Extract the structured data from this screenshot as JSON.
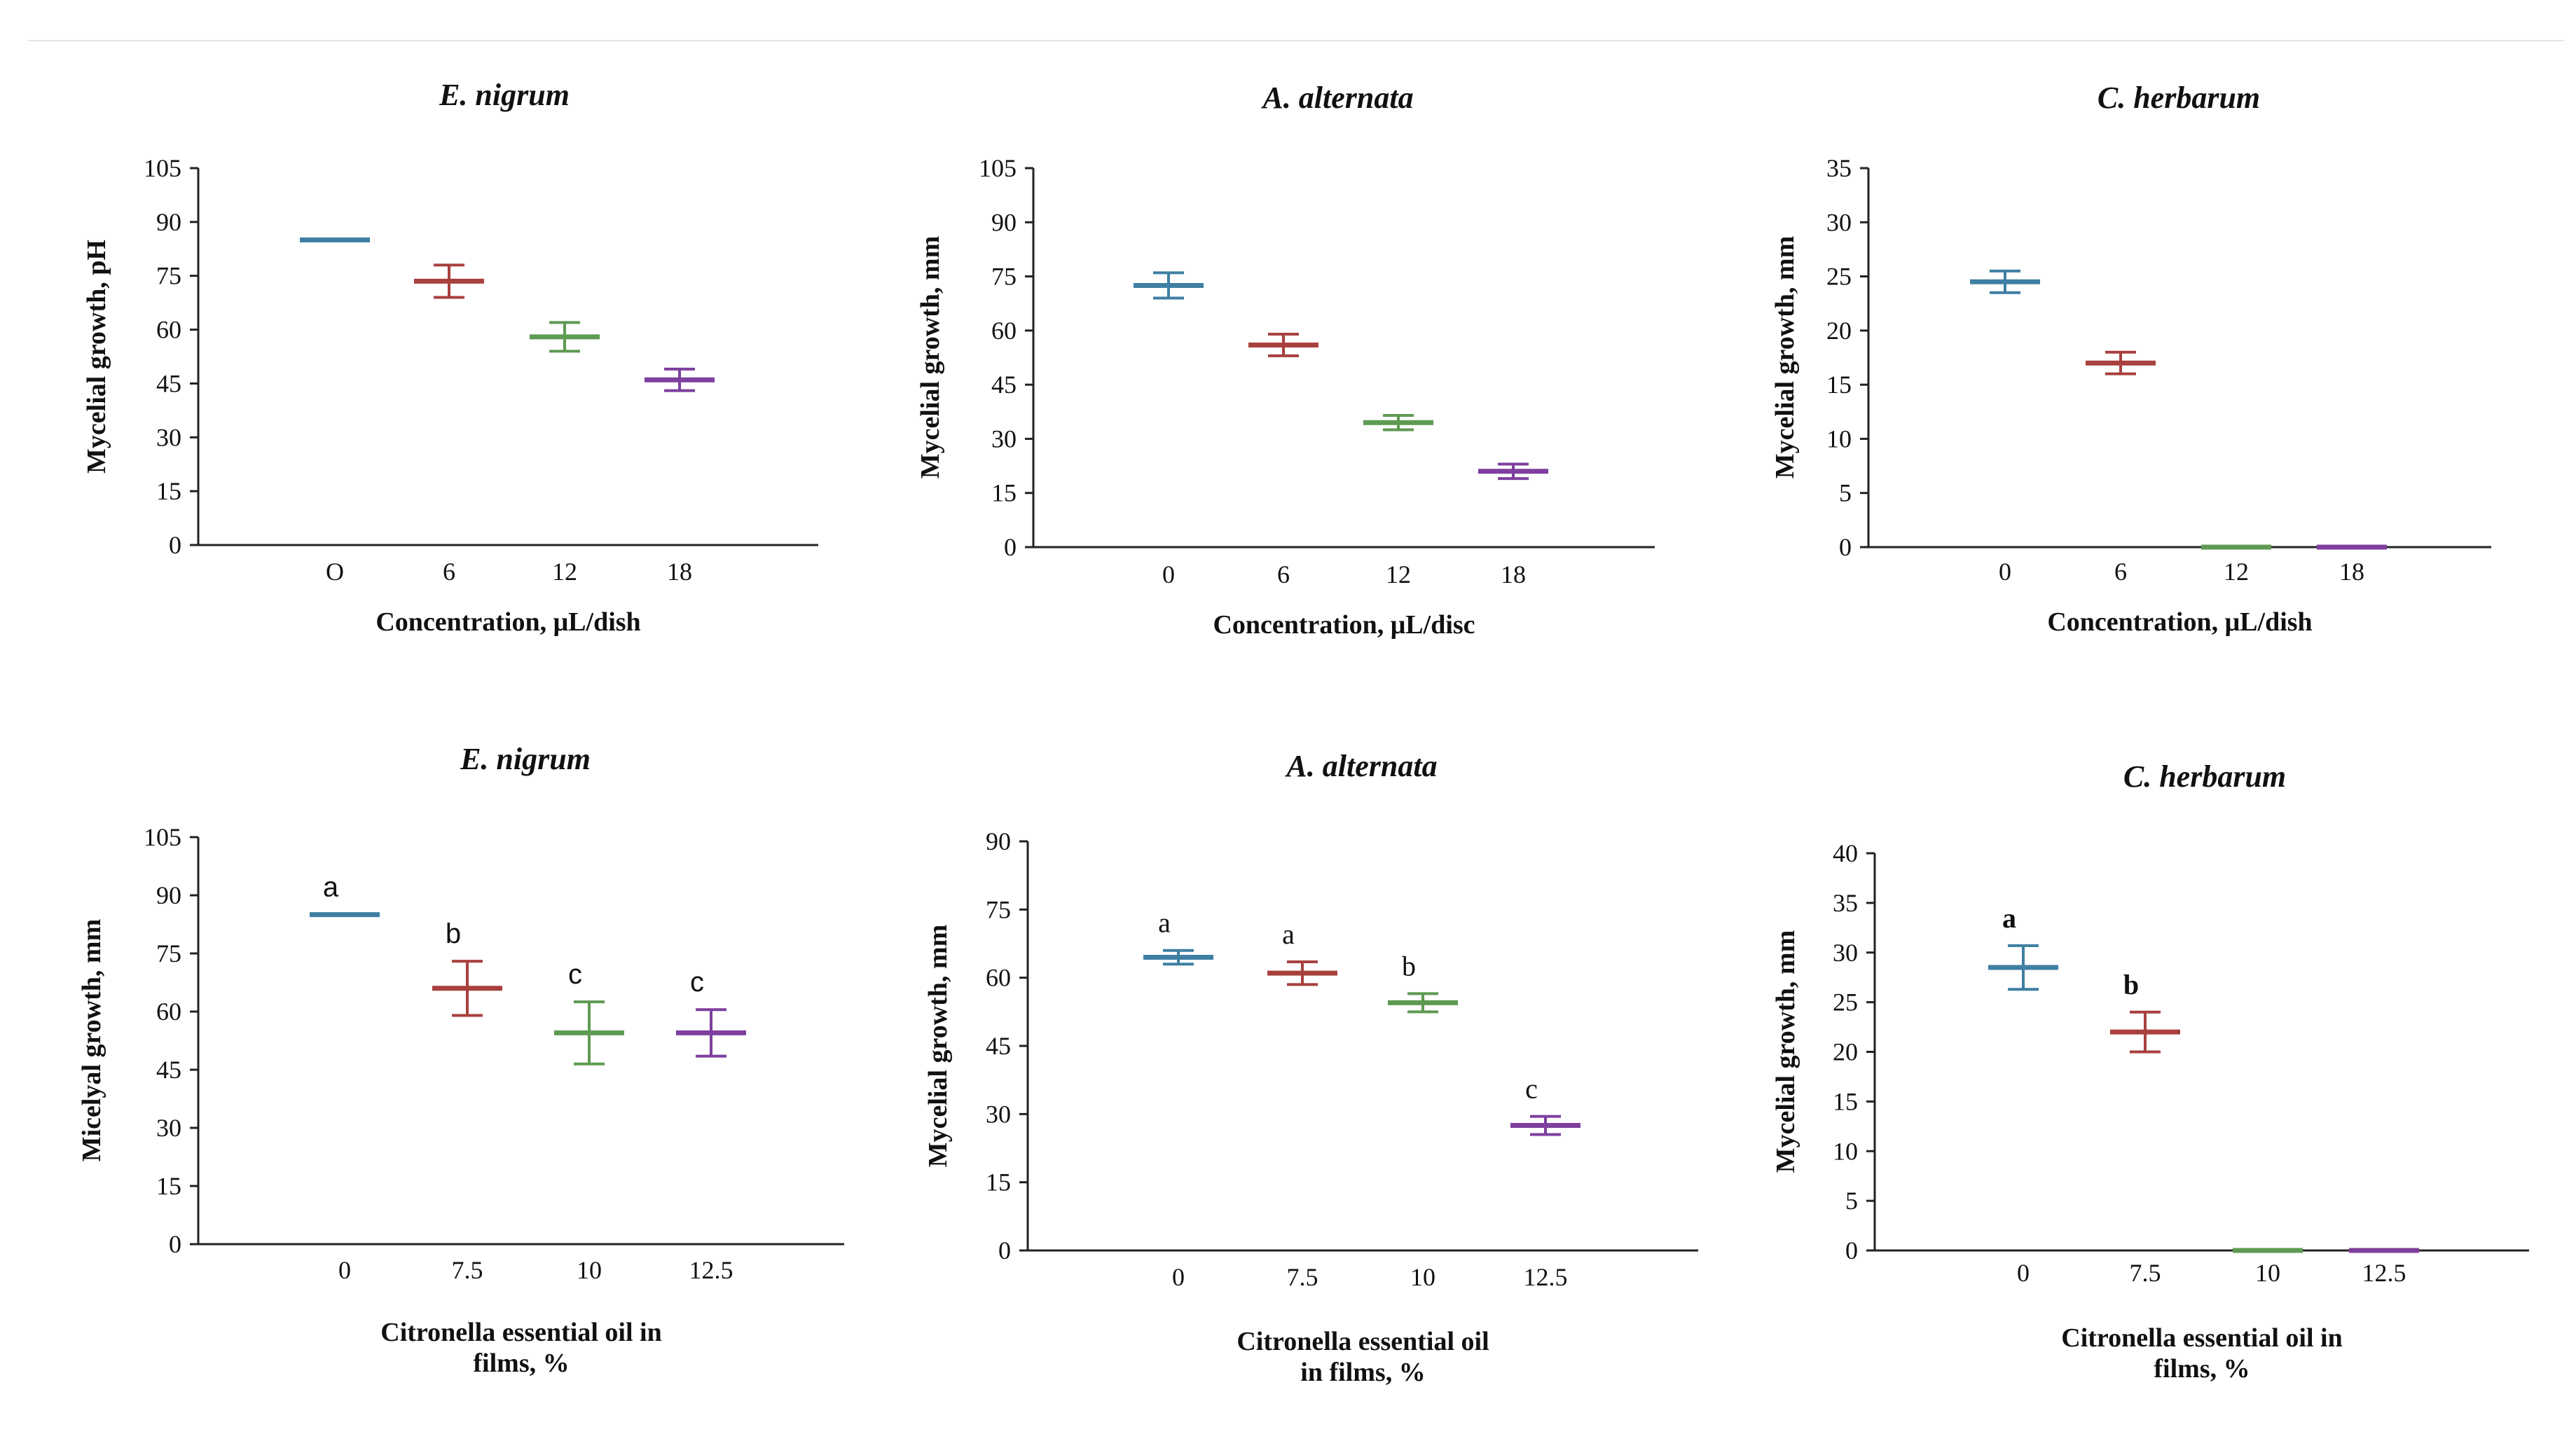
{
  "chart_data": [
    {
      "type": "scatter",
      "title": "E. nigrum",
      "xlabel": [
        "Concentration, μL/dish"
      ],
      "ylabel": "Mycelial growth, pH",
      "categories": [
        "O",
        "6",
        "12",
        "18"
      ],
      "ylim": [
        0,
        105
      ],
      "yticks": [
        0,
        15,
        30,
        45,
        60,
        75,
        90,
        105
      ],
      "series": [
        {
          "name": "mean",
          "values": [
            85,
            73.5,
            58,
            46
          ],
          "errors": [
            0,
            4.5,
            4,
            3
          ],
          "colors": [
            "#3f7fa3",
            "#a8403e",
            "#5e9a52",
            "#7e3f9e"
          ]
        }
      ],
      "labels": []
    },
    {
      "type": "scatter",
      "title": "A. alternata",
      "xlabel": [
        "Concentration, μL/disc"
      ],
      "ylabel": "Mycelial growth, mm",
      "categories": [
        "0",
        "6",
        "12",
        "18"
      ],
      "ylim": [
        0,
        105
      ],
      "yticks": [
        0,
        15,
        30,
        45,
        60,
        75,
        90,
        105
      ],
      "series": [
        {
          "name": "mean",
          "values": [
            72.5,
            56,
            34.5,
            21
          ],
          "errors": [
            3.5,
            3,
            2,
            2
          ],
          "colors": [
            "#3f7fa3",
            "#a8403e",
            "#5e9a52",
            "#7e3f9e"
          ]
        }
      ],
      "labels": []
    },
    {
      "type": "scatter",
      "title": "C. herbarum",
      "xlabel": [
        "Concentration, μL/dish"
      ],
      "ylabel": "Mycelial growth, mm",
      "categories": [
        "0",
        "6",
        "12",
        "18"
      ],
      "ylim": [
        0,
        35
      ],
      "yticks": [
        0,
        5,
        10,
        15,
        20,
        25,
        30,
        35
      ],
      "series": [
        {
          "name": "mean",
          "values": [
            24.5,
            17,
            0,
            0
          ],
          "errors": [
            1,
            1,
            0,
            0
          ],
          "colors": [
            "#3f7fa3",
            "#a8403e",
            "#5e9a52",
            "#7e3f9e"
          ]
        }
      ],
      "labels": []
    },
    {
      "type": "scatter",
      "title": "E. nigrum",
      "xlabel": [
        "Citronella essential oil in",
        "films, %"
      ],
      "ylabel": "Micelyal growth, mm",
      "categories": [
        "0",
        "7.5",
        "10",
        "12.5"
      ],
      "ylim": [
        0,
        105
      ],
      "yticks": [
        0,
        15,
        30,
        45,
        60,
        75,
        90,
        105
      ],
      "series": [
        {
          "name": "mean",
          "values": [
            85,
            66,
            54.5,
            54.5
          ],
          "errors": [
            0,
            7,
            8,
            6
          ],
          "colors": [
            "#3f7fa3",
            "#a8403e",
            "#5e9a52",
            "#7e3f9e"
          ]
        }
      ],
      "labels": [
        "a",
        "b",
        "c",
        "c"
      ],
      "label_style": "sans"
    },
    {
      "type": "scatter",
      "title": "A. alternata",
      "xlabel": [
        "Citronella essential oil",
        "in films, %"
      ],
      "ylabel": "Mycelial growth, mm",
      "categories": [
        "0",
        "7.5",
        "10",
        "12.5"
      ],
      "ylim": [
        0,
        90
      ],
      "yticks": [
        0,
        15,
        30,
        45,
        60,
        75,
        90
      ],
      "series": [
        {
          "name": "mean",
          "values": [
            64.5,
            61,
            54.5,
            27.5
          ],
          "errors": [
            1.5,
            2.5,
            2,
            2
          ],
          "colors": [
            "#3f7fa3",
            "#a8403e",
            "#5e9a52",
            "#7e3f9e"
          ]
        }
      ],
      "labels": [
        "a",
        "a",
        "b",
        "c"
      ],
      "label_style": "serif"
    },
    {
      "type": "scatter",
      "title": "C. herbarum",
      "xlabel": [
        "Citronella essential oil in",
        "films, %"
      ],
      "ylabel": "Mycelial growth, mm",
      "categories": [
        "0",
        "7.5",
        "10",
        "12.5"
      ],
      "ylim": [
        0,
        40
      ],
      "yticks": [
        0,
        5,
        10,
        15,
        20,
        25,
        30,
        35,
        40
      ],
      "series": [
        {
          "name": "mean",
          "values": [
            28.5,
            22,
            0,
            0
          ],
          "errors": [
            2.2,
            2,
            0,
            0
          ],
          "colors": [
            "#3f7fa3",
            "#a8403e",
            "#5e9a52",
            "#7e3f9e"
          ]
        }
      ],
      "labels": [
        "a",
        "b",
        "",
        ""
      ],
      "label_style": "bold"
    }
  ]
}
